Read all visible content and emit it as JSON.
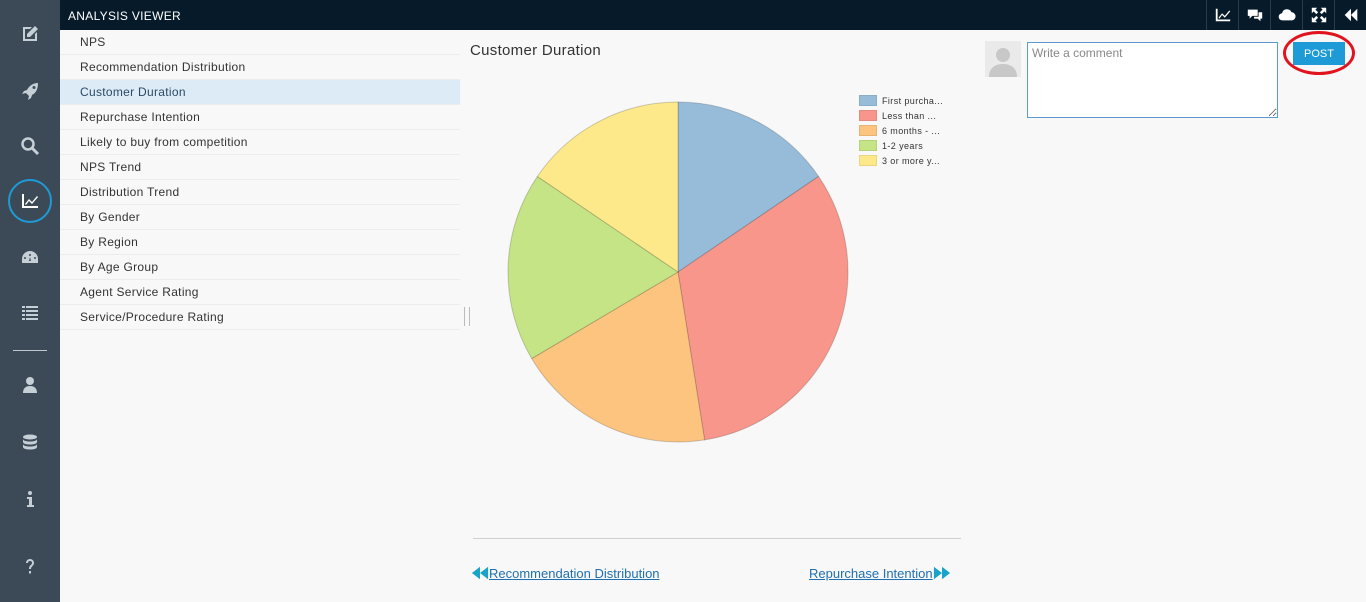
{
  "header": {
    "title": "ANALYSIS VIEWER",
    "toolbar_icons": [
      "line-chart-icon",
      "comments-icon",
      "cloud-icon",
      "fullscreen-icon",
      "collapse-icon"
    ]
  },
  "rail": {
    "icons": [
      "edit-icon",
      "rocket-icon",
      "search-icon",
      "analysis-chart-icon",
      "dashboard-icon",
      "list-icon",
      "user-icon",
      "database-icon",
      "info-icon",
      "help-icon"
    ],
    "active": "analysis-chart-icon"
  },
  "nav": {
    "items": [
      "NPS",
      "Recommendation Distribution",
      "Customer Duration",
      "Repurchase Intention",
      "Likely to buy from competition",
      "NPS Trend",
      "Distribution Trend",
      "By Gender",
      "By Region",
      "By Age Group",
      "Agent Service Rating",
      "Service/Procedure Rating"
    ],
    "selected_index": 2
  },
  "chart_data": {
    "type": "pie",
    "title": "Customer Duration",
    "categories": [
      "First purcha...",
      "Less than ...",
      "6 months - ...",
      "1-2 years",
      "3 or more y..."
    ],
    "values": [
      15.5,
      32,
      19,
      18,
      15.5
    ],
    "colors": [
      "#97bcda",
      "#f9968b",
      "#fcc47f",
      "#c4e485",
      "#fde98a"
    ],
    "legend_position": "top-right"
  },
  "pager": {
    "prev_label": "Recommendation Distribution",
    "next_label": "Repurchase Intention"
  },
  "comment": {
    "placeholder": "Write a comment",
    "value": "",
    "post_label": "POST"
  },
  "colors": {
    "accent": "#1e9bd7",
    "topbar": "#071a2a",
    "rail": "#3c4a57",
    "highlight_ring": "#e0141e"
  }
}
